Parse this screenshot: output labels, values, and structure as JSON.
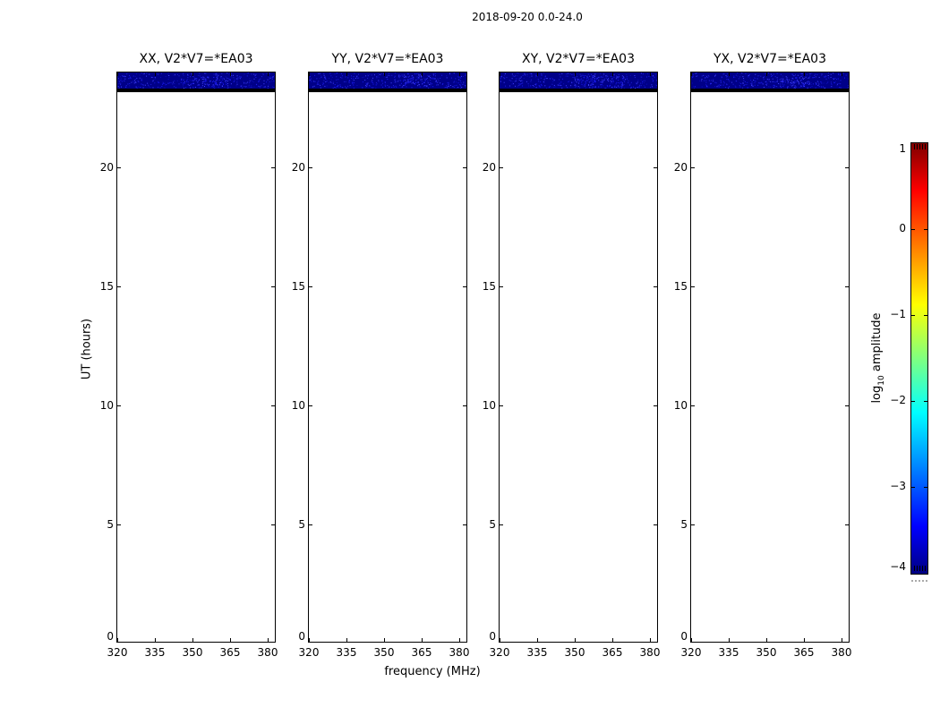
{
  "figure": {
    "title": "2018-09-20 0.0-24.0",
    "xlabel": "frequency (MHz)",
    "ylabel": "UT (hours)"
  },
  "panels": [
    {
      "title": "XX, V2*V7=*EA03"
    },
    {
      "title": "YY, V2*V7=*EA03"
    },
    {
      "title": "XY, V2*V7=*EA03"
    },
    {
      "title": "YX, V2*V7=*EA03"
    }
  ],
  "axis": {
    "x_tick_labels": [
      "320",
      "335",
      "350",
      "365",
      "380"
    ],
    "x_tick_values": [
      320,
      335,
      350,
      365,
      380
    ],
    "x_min": 320,
    "x_max": 383.5,
    "y_tick_labels": [
      "0",
      "5",
      "10",
      "15",
      "20"
    ],
    "y_tick_values": [
      0,
      5,
      10,
      15,
      20
    ],
    "y_min": 0,
    "y_max": 24
  },
  "colorbar": {
    "tick_labels": [
      "1",
      "0",
      "−1",
      "−2",
      "−3",
      "−4"
    ],
    "tick_values": [
      1,
      0,
      -1,
      -2,
      -3,
      -4
    ],
    "label_log": "log",
    "label_sub": "10",
    "label_rest": " amplitude",
    "colormap": "jet",
    "gradient_top_to_bottom": [
      "#7f0000",
      "#ff0000",
      "#ffff00",
      "#00ffff",
      "#0000ff",
      "#000082"
    ]
  },
  "colors": {
    "background": "#ffffff",
    "frame": "#000000",
    "text": "#000000",
    "band_base": "#000088",
    "band_black_row": "#000000",
    "speckles": [
      "#0d0dbb",
      "#2222dd",
      "#4444ff",
      "#1a1af0"
    ]
  },
  "chart_data": [
    {
      "type": "heatmap",
      "title": "XX, V2*V7=*EA03",
      "xlabel": "frequency (MHz)",
      "ylabel": "UT (hours)",
      "xlim": [
        320,
        383.5
      ],
      "ylim": [
        0,
        24
      ],
      "x_ticks": [
        320,
        335,
        350,
        365,
        380
      ],
      "y_ticks": [
        0,
        5,
        10,
        15,
        20
      ],
      "colormap": "jet",
      "color_scale_label": "log10 amplitude",
      "color_scale_ticks": [
        1,
        0,
        -1,
        -2,
        -3,
        -4
      ],
      "color_scale_range": [
        -4,
        1
      ],
      "data_summary": {
        "occupied_ut_range": [
          23.3,
          24.0
        ],
        "value_log10_amplitude": -4,
        "description": "Dark navy band (log10 amplitude near -4) across all frequencies 320-383.5 MHz for UT 23.3-24.0 with sparse brighter blue noise speckles; near-black row at UT 23.1-23.3; white (no data) for UT 0-23.1."
      }
    },
    {
      "type": "heatmap",
      "title": "YY, V2*V7=*EA03",
      "xlabel": "frequency (MHz)",
      "ylabel": "UT (hours)",
      "xlim": [
        320,
        383.5
      ],
      "ylim": [
        0,
        24
      ],
      "x_ticks": [
        320,
        335,
        350,
        365,
        380
      ],
      "y_ticks": [
        0,
        5,
        10,
        15,
        20
      ],
      "colormap": "jet",
      "color_scale_label": "log10 amplitude",
      "color_scale_ticks": [
        1,
        0,
        -1,
        -2,
        -3,
        -4
      ],
      "color_scale_range": [
        -4,
        1
      ],
      "data_summary": {
        "occupied_ut_range": [
          23.3,
          24.0
        ],
        "value_log10_amplitude": -4,
        "description": "Dark navy band (log10 amplitude near -4) across all frequencies for UT 23.3-24.0 with brighter blue speckle cluster near 365 MHz; near-black row at UT 23.1-23.3; white elsewhere."
      }
    },
    {
      "type": "heatmap",
      "title": "XY, V2*V7=*EA03",
      "xlabel": "frequency (MHz)",
      "ylabel": "UT (hours)",
      "xlim": [
        320,
        383.5
      ],
      "ylim": [
        0,
        24
      ],
      "x_ticks": [
        320,
        335,
        350,
        365,
        380
      ],
      "y_ticks": [
        0,
        5,
        10,
        15,
        20
      ],
      "colormap": "jet",
      "color_scale_label": "log10 amplitude",
      "color_scale_ticks": [
        1,
        0,
        -1,
        -2,
        -3,
        -4
      ],
      "color_scale_range": [
        -4,
        1
      ],
      "data_summary": {
        "occupied_ut_range": [
          23.3,
          24.0
        ],
        "value_log10_amplitude": -4,
        "description": "Dark navy band (log10 amplitude near -4) across all frequencies for UT 23.3-24.0 with sparse brighter blue speckles; near-black row at UT 23.1-23.3; white elsewhere."
      }
    },
    {
      "type": "heatmap",
      "title": "YX, V2*V7=*EA03",
      "xlabel": "frequency (MHz)",
      "ylabel": "UT (hours)",
      "xlim": [
        320,
        383.5
      ],
      "ylim": [
        0,
        24
      ],
      "x_ticks": [
        320,
        335,
        350,
        365,
        380
      ],
      "y_ticks": [
        0,
        5,
        10,
        15,
        20
      ],
      "colormap": "jet",
      "color_scale_label": "log10 amplitude",
      "color_scale_ticks": [
        1,
        0,
        -1,
        -2,
        -3,
        -4
      ],
      "color_scale_range": [
        -4,
        1
      ],
      "data_summary": {
        "occupied_ut_range": [
          23.3,
          24.0
        ],
        "value_log10_amplitude": -4,
        "description": "Dark navy band (log10 amplitude near -4) across all frequencies for UT 23.3-24.0 with sparse brighter blue speckles; near-black row at UT 23.1-23.3; white elsewhere."
      }
    }
  ]
}
